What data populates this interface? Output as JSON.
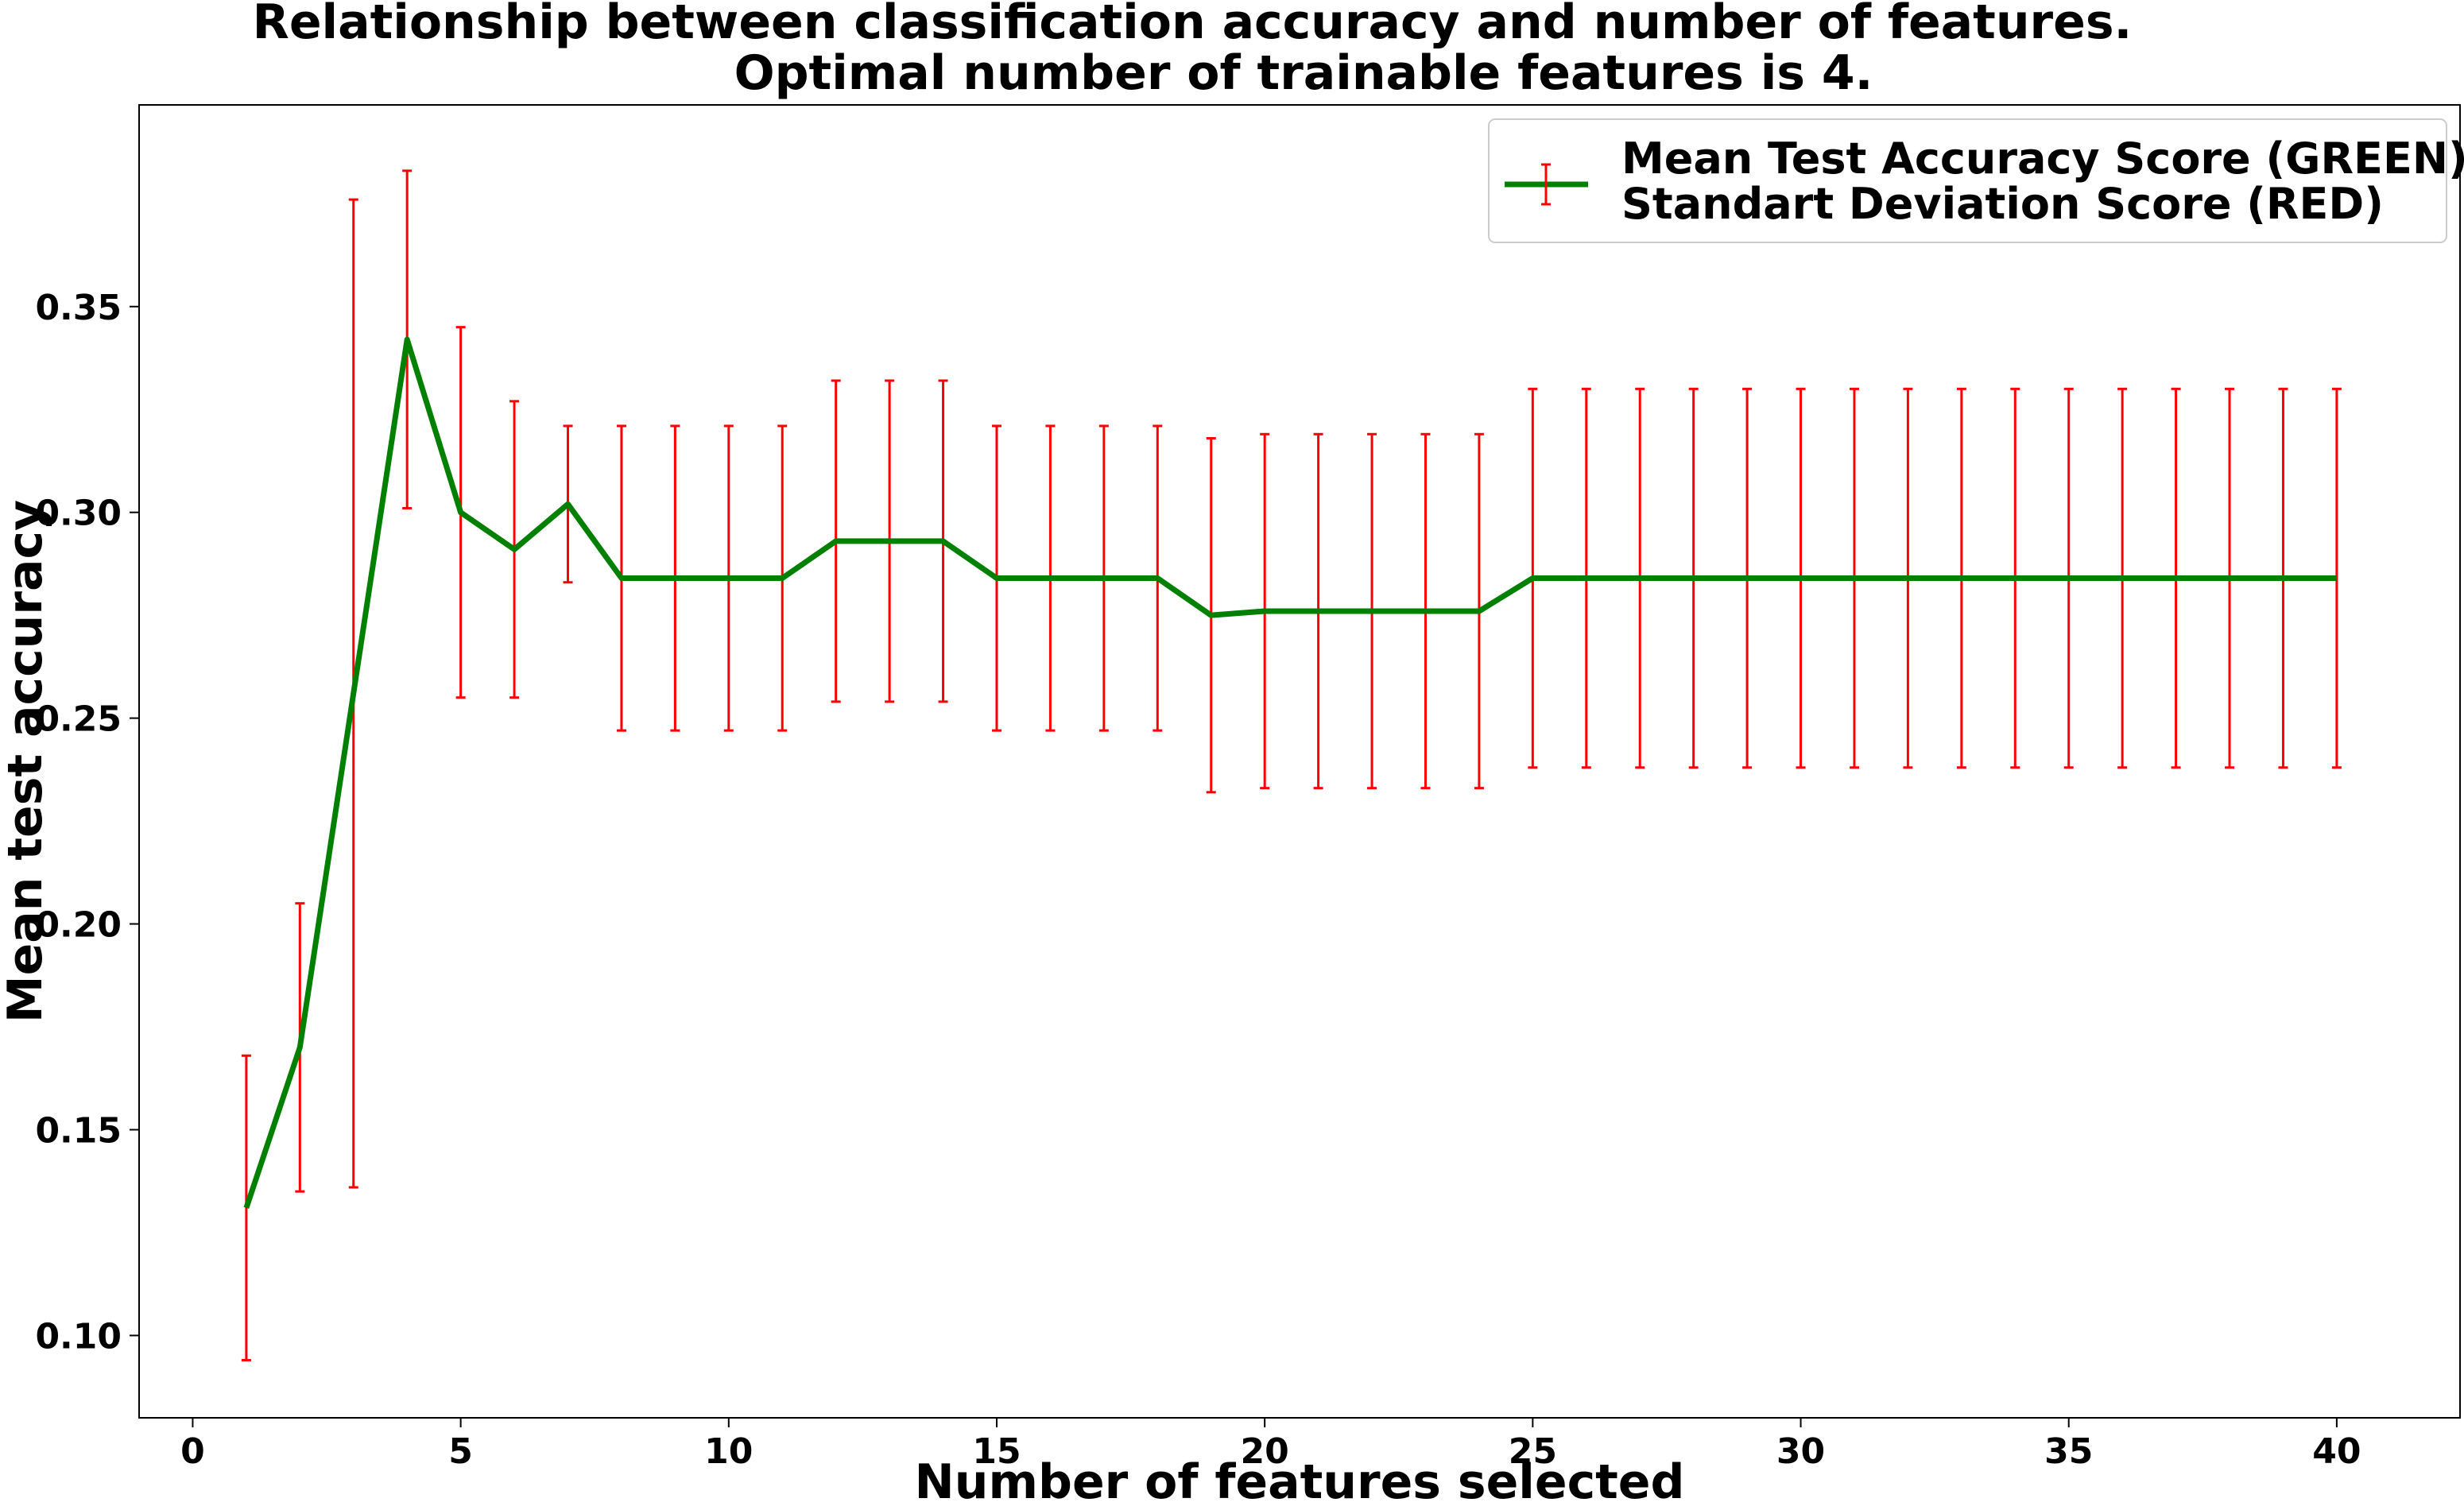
{
  "chart_data": {
    "type": "line",
    "title": [
      "Relationship between classification accuracy and number of features.",
      "Optimal number of trainable features is 4."
    ],
    "xlabel": "Number of features selected",
    "ylabel": "Mean test accuracy",
    "xlim": [
      -1,
      42.3
    ],
    "ylim": [
      0.08,
      0.399
    ],
    "xticks": [
      0,
      5,
      10,
      15,
      20,
      25,
      30,
      35,
      40
    ],
    "xtick_labels": [
      "0",
      "5",
      "10",
      "15",
      "20",
      "25",
      "30",
      "35",
      "40"
    ],
    "yticks": [
      0.1,
      0.15,
      0.2,
      0.25,
      0.3,
      0.35
    ],
    "ytick_labels": [
      "0.10",
      "0.15",
      "0.20",
      "0.25",
      "0.30",
      "0.35"
    ],
    "line_color": "#008000",
    "error_color": "#ff0000",
    "x": [
      1,
      2,
      3,
      4,
      5,
      6,
      7,
      8,
      9,
      10,
      11,
      12,
      13,
      14,
      15,
      16,
      17,
      18,
      19,
      20,
      21,
      22,
      23,
      24,
      25,
      26,
      27,
      28,
      29,
      30,
      31,
      32,
      33,
      34,
      35,
      36,
      37,
      38,
      39,
      40
    ],
    "series": [
      {
        "name": "Mean Test Accuracy Score (GREEN)",
        "values": [
          0.131,
          0.17,
          0.256,
          0.342,
          0.3,
          0.291,
          0.302,
          0.284,
          0.284,
          0.284,
          0.284,
          0.293,
          0.293,
          0.293,
          0.284,
          0.284,
          0.284,
          0.284,
          0.275,
          0.276,
          0.276,
          0.276,
          0.276,
          0.276,
          0.284,
          0.284,
          0.284,
          0.284,
          0.284,
          0.284,
          0.284,
          0.284,
          0.284,
          0.284,
          0.284,
          0.284,
          0.284,
          0.284,
          0.284,
          0.284
        ],
        "errors": [
          0.037,
          0.035,
          0.12,
          0.041,
          0.045,
          0.036,
          0.019,
          0.037,
          0.037,
          0.037,
          0.037,
          0.039,
          0.039,
          0.039,
          0.037,
          0.037,
          0.037,
          0.037,
          0.043,
          0.043,
          0.043,
          0.043,
          0.043,
          0.043,
          0.046,
          0.046,
          0.046,
          0.046,
          0.046,
          0.046,
          0.046,
          0.046,
          0.046,
          0.046,
          0.046,
          0.046,
          0.046,
          0.046,
          0.046,
          0.046
        ]
      }
    ],
    "legend": {
      "placement": "top-right",
      "entries": [
        "Mean Test Accuracy Score (GREEN)",
        "Standart Deviation Score (RED)"
      ]
    }
  }
}
